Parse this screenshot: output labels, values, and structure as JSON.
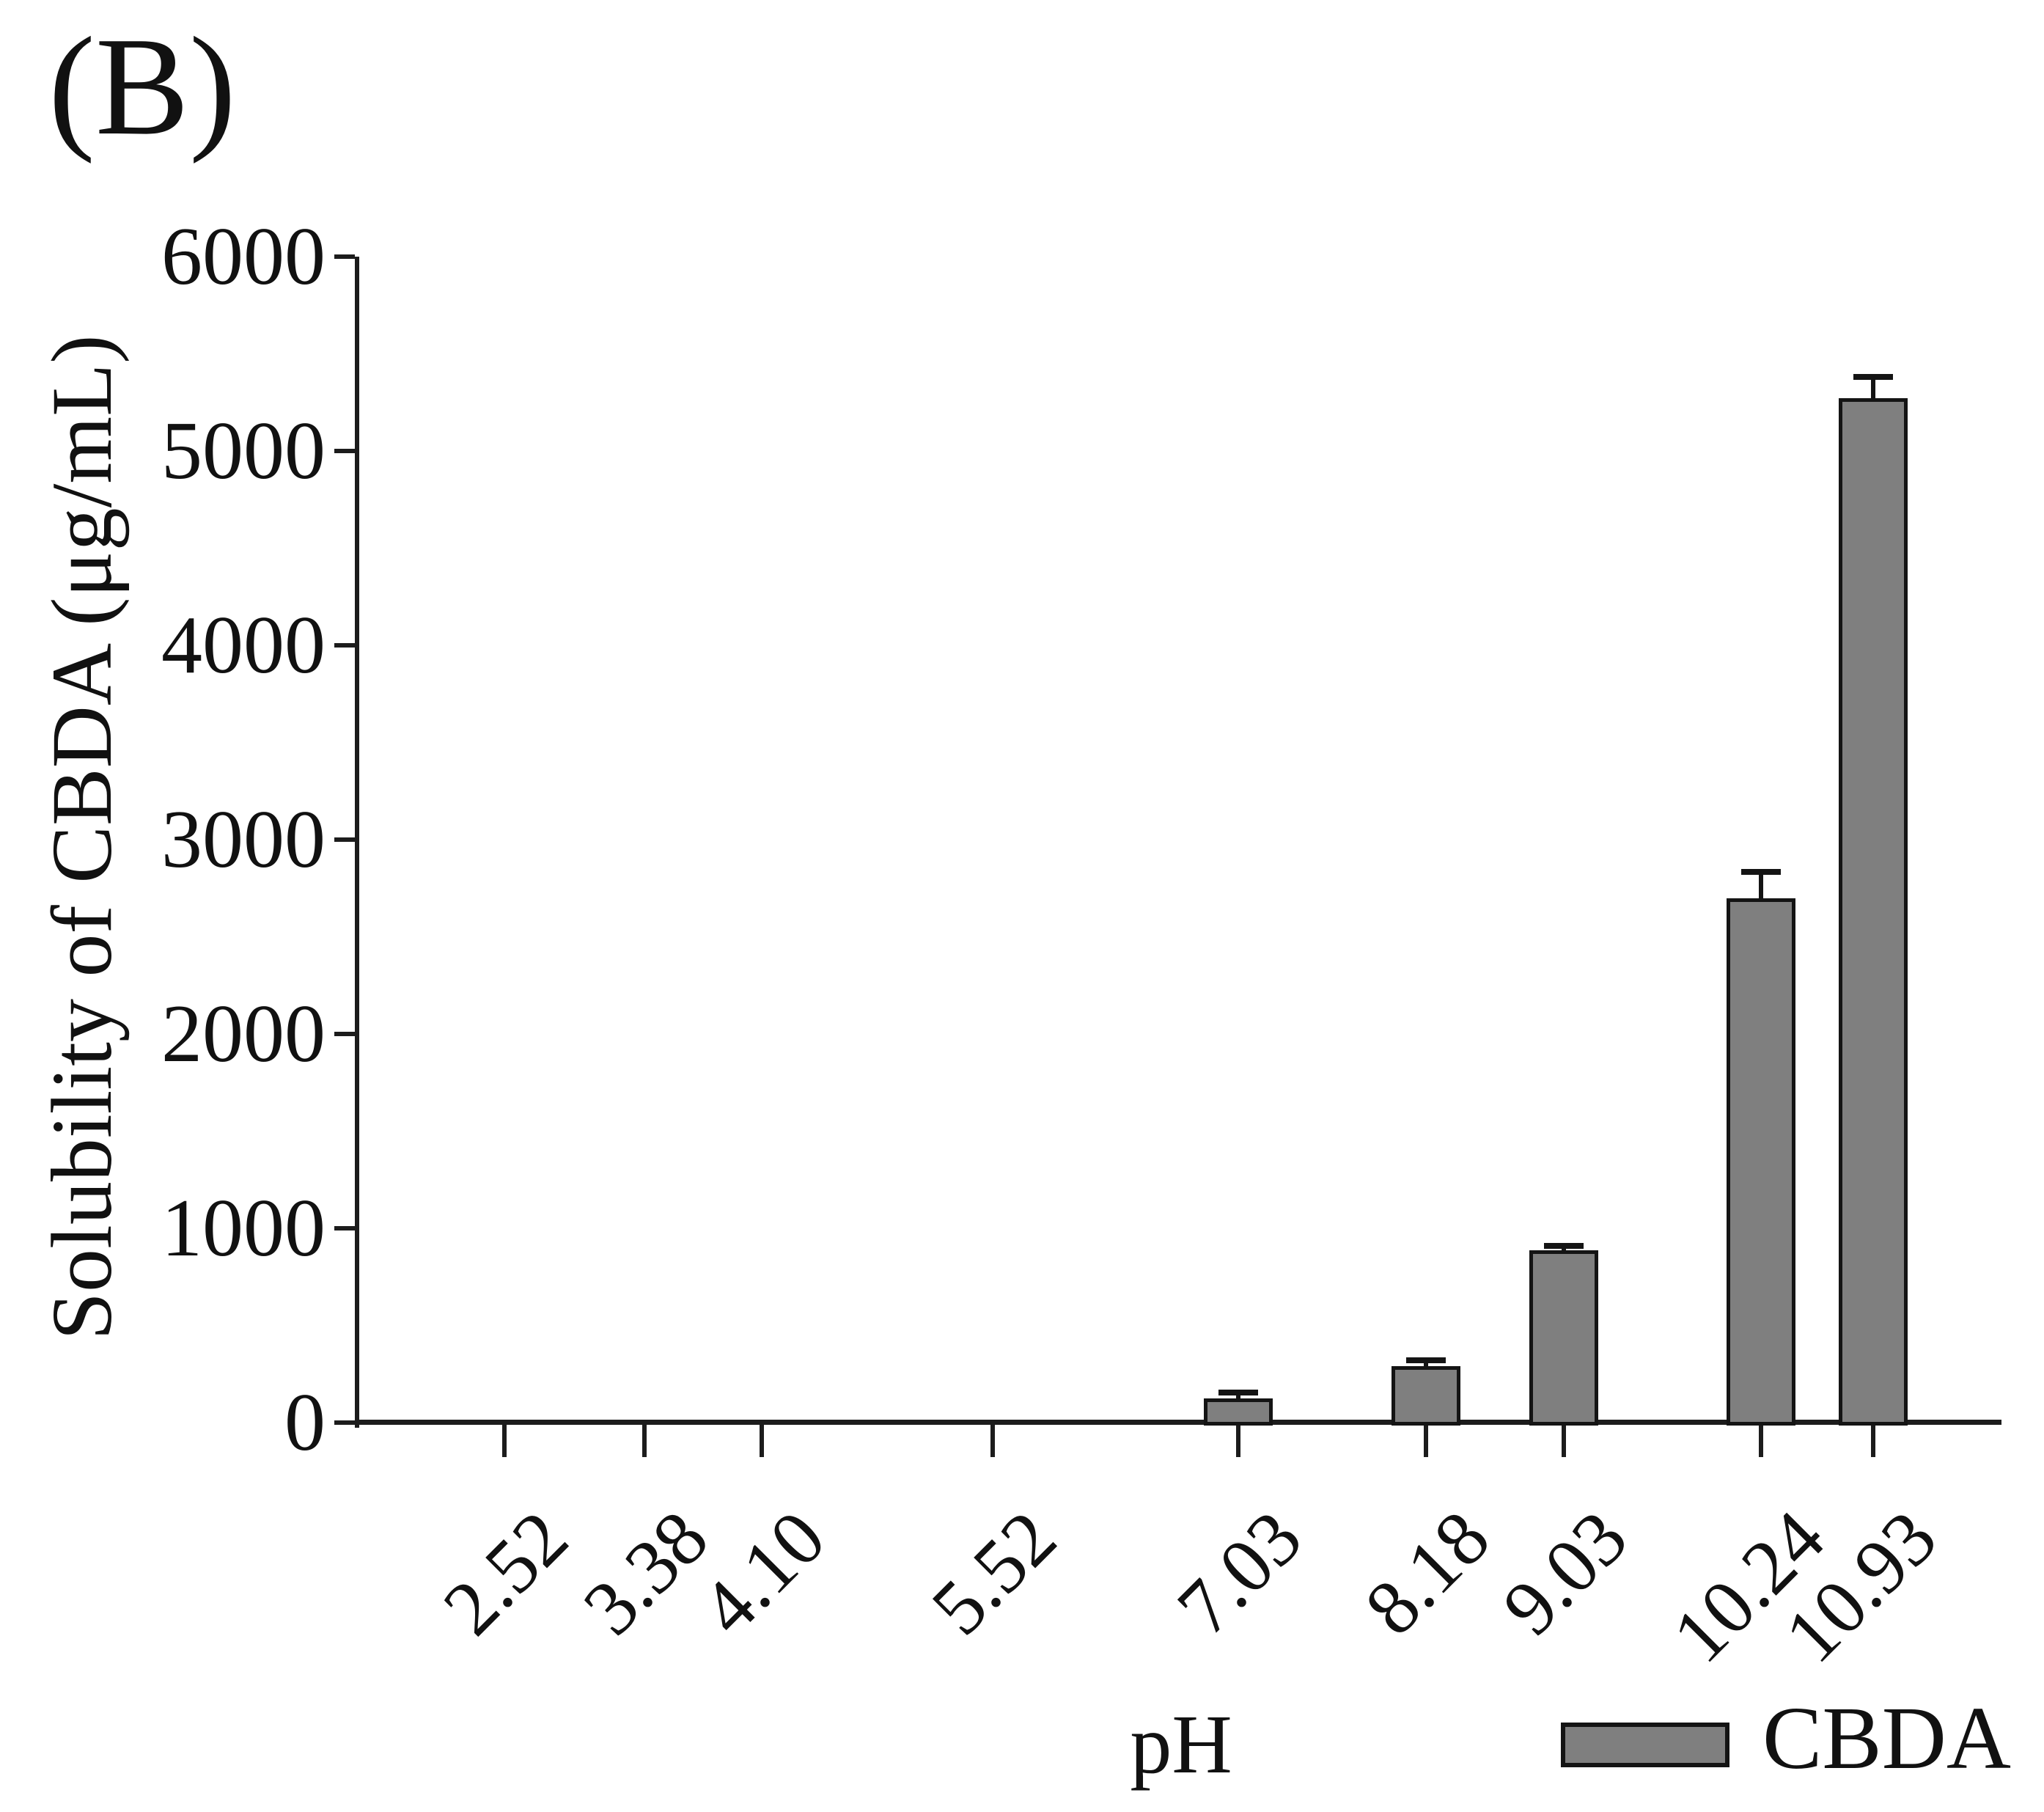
{
  "figure": {
    "panel_label": "(B)",
    "background": "#ffffff",
    "text_color": "#111111",
    "axis_color": "#1c1c1c"
  },
  "chart_data": {
    "type": "bar",
    "title": "",
    "panel": "(B)",
    "xlabel": "pH",
    "ylabel": "Solubility of CBDA (μg/mL)",
    "categories": [
      "2.52",
      "3.38",
      "4.10",
      "5.52",
      "7.03",
      "8.18",
      "9.03",
      "10.24",
      "10.93"
    ],
    "x_numeric": [
      2.52,
      3.38,
      4.1,
      5.52,
      7.03,
      8.18,
      9.03,
      10.24,
      10.93
    ],
    "series": [
      {
        "name": "CBDA",
        "values": [
          0,
          0,
          0,
          0,
          125,
          290,
          885,
          2700,
          5270
        ],
        "errors_plus": [
          0,
          0,
          0,
          0,
          30,
          30,
          25,
          135,
          110
        ]
      }
    ],
    "ylim": [
      0,
      6000
    ],
    "y_ticks": [
      0,
      1000,
      2000,
      3000,
      4000,
      5000,
      6000
    ],
    "xlim": [
      1.63,
      11.72
    ],
    "x_tick_label_rotation_deg": 45,
    "grid": false,
    "bar_fill_color": "#7f7f7f",
    "bar_edge_color": "#141414",
    "error_bar_color": "#141414",
    "legend_position": "bottom-right",
    "legend": [
      {
        "label": "CBDA",
        "swatch_color": "#7f7f7f"
      }
    ]
  }
}
